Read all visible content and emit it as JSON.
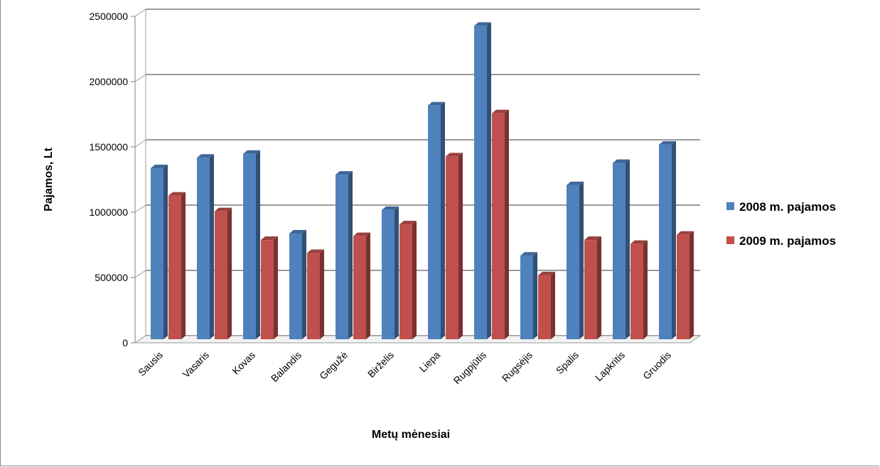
{
  "chart_data": {
    "type": "bar",
    "categories": [
      "Sausis",
      "Vasaris",
      "Kovas",
      "Balandis",
      "Gegužė",
      "Birželis",
      "Liepa",
      "Rugpjūtis",
      "Rugsėjis",
      "Spalis",
      "Lapkritis",
      "Gruodis"
    ],
    "series": [
      {
        "name": "2008 m. pajamos",
        "color": "#4f81bd",
        "values": [
          1310000,
          1390000,
          1420000,
          810000,
          1260000,
          990000,
          1790000,
          2400000,
          640000,
          1180000,
          1350000,
          1490000
        ]
      },
      {
        "name": "2009 m. pajamos",
        "color": "#c0504d",
        "values": [
          1100000,
          980000,
          760000,
          660000,
          790000,
          880000,
          1400000,
          1730000,
          490000,
          760000,
          730000,
          800000
        ]
      }
    ],
    "xlabel": "Metų mėnesiai",
    "ylabel": "Pajamos, Lt",
    "ylim": [
      0,
      2500000
    ],
    "yticks": [
      "0",
      "500000",
      "1000000",
      "1500000",
      "2000000",
      "2500000"
    ],
    "grid": true,
    "legend": "right"
  }
}
